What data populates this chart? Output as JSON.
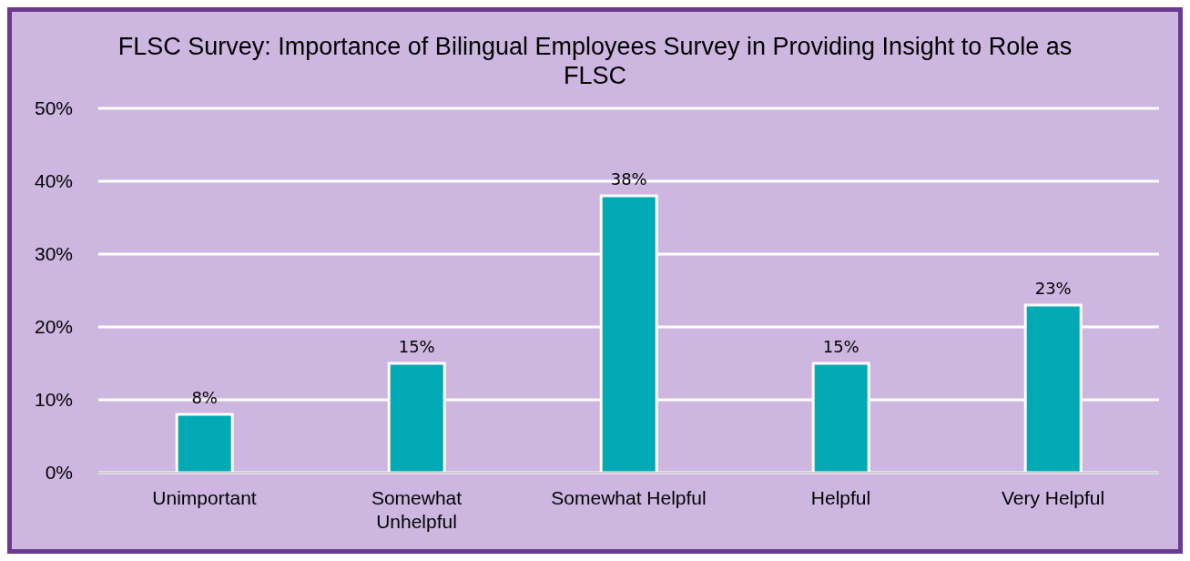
{
  "chart_data": {
    "type": "bar",
    "title": "FLSC Survey: Importance of Bilingual Employees Survey in Providing Insight to Role as FLSC",
    "categories": [
      "Unimportant",
      "Somewhat Unhelpful",
      "Somewhat Helpful",
      "Helpful",
      "Very Helpful"
    ],
    "values": [
      8,
      15,
      38,
      15,
      23
    ],
    "value_labels": [
      "8%",
      "15%",
      "38%",
      "15%",
      "23%"
    ],
    "color": "#00a9b4",
    "ylim": [
      0,
      50
    ],
    "yticks": [
      {
        "value": 0,
        "label": "0%"
      },
      {
        "value": 10,
        "label": "10%"
      },
      {
        "value": 20,
        "label": "20%"
      },
      {
        "value": 30,
        "label": "30%"
      },
      {
        "value": 40,
        "label": "40%"
      },
      {
        "value": 50,
        "label": "50%"
      }
    ],
    "grid": "y"
  }
}
